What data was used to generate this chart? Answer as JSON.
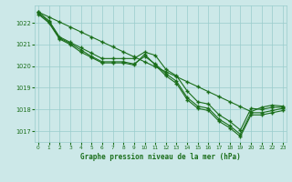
{
  "xlabel": "Graphe pression niveau de la mer (hPa)",
  "ylim": [
    1016.5,
    1022.8
  ],
  "xlim": [
    -0.3,
    23.3
  ],
  "yticks": [
    1017,
    1018,
    1019,
    1020,
    1021,
    1022
  ],
  "xticks": [
    0,
    1,
    2,
    3,
    4,
    5,
    6,
    7,
    8,
    9,
    10,
    11,
    12,
    13,
    14,
    15,
    16,
    17,
    18,
    19,
    20,
    21,
    22,
    23
  ],
  "bg_color": "#cce8e8",
  "grid_color": "#99cccc",
  "line_color": "#1a6e1a",
  "line1": [
    1022.5,
    1022.1,
    1021.35,
    1021.1,
    1020.85,
    1020.6,
    1020.35,
    1020.35,
    1020.35,
    1020.35,
    1020.65,
    1020.5,
    1019.85,
    1019.55,
    1018.85,
    1018.35,
    1018.25,
    1017.75,
    1017.45,
    1017.05,
    1018.05,
    1018.0,
    1018.1,
    1018.1
  ],
  "line2": [
    1022.45,
    1022.05,
    1021.3,
    1021.05,
    1020.75,
    1020.45,
    1020.2,
    1020.2,
    1020.2,
    1020.1,
    1020.45,
    1020.1,
    1019.65,
    1019.3,
    1018.55,
    1018.15,
    1018.05,
    1017.55,
    1017.25,
    1016.85,
    1017.85,
    1017.85,
    1017.95,
    1018.05
  ],
  "line3": [
    1022.4,
    1022.0,
    1021.25,
    1021.0,
    1020.65,
    1020.4,
    1020.15,
    1020.15,
    1020.15,
    1020.05,
    1020.55,
    1020.05,
    1019.55,
    1019.2,
    1018.45,
    1018.05,
    1017.95,
    1017.45,
    1017.15,
    1016.75,
    1017.75,
    1017.75,
    1017.85,
    1017.95
  ],
  "line_straight": [
    1022.5,
    1022.27,
    1022.04,
    1021.81,
    1021.58,
    1021.35,
    1021.12,
    1020.89,
    1020.66,
    1020.43,
    1020.2,
    1019.97,
    1019.74,
    1019.51,
    1019.28,
    1019.05,
    1018.82,
    1018.59,
    1018.36,
    1018.13,
    1017.9,
    1018.1,
    1018.2,
    1018.15
  ]
}
